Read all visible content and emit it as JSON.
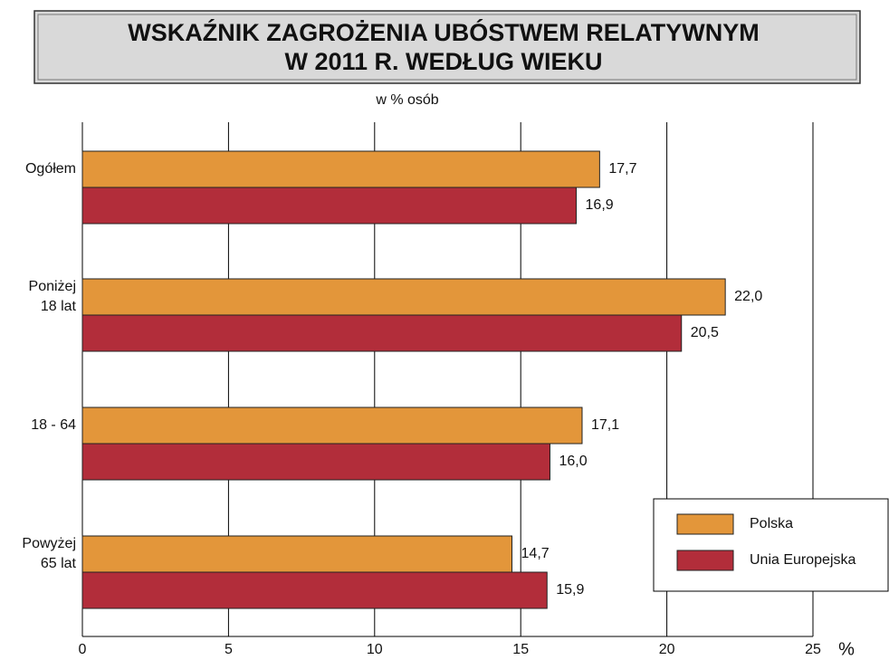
{
  "chart_data": {
    "type": "bar",
    "orientation": "horizontal",
    "title": [
      "WSKAŹNIK ZAGROŻENIA UBÓSTWEM RELATYWNYM",
      "W 2011 R. WEDŁUG WIEKU"
    ],
    "subtitle": "w % osób",
    "xlabel": "%",
    "categories": [
      "Ogółem",
      "Poniżej\n18 lat",
      "18 - 64",
      "Powyżej\n65 lat"
    ],
    "series": [
      {
        "name": "Polska",
        "color": "#e3963a",
        "values": [
          17.7,
          22.0,
          17.1,
          14.7
        ],
        "value_labels": [
          "17,7",
          "22,0",
          "17,1",
          "14,7"
        ]
      },
      {
        "name": "Unia Europejska",
        "color": "#b22d3a",
        "values": [
          16.9,
          20.5,
          16.0,
          15.9
        ],
        "value_labels": [
          "16,9",
          "20,5",
          "16,0",
          "15,9"
        ]
      }
    ],
    "xlim": [
      0,
      25
    ],
    "xticks": [
      0,
      5,
      10,
      15,
      20,
      25
    ],
    "grid": true,
    "legend": "lower right"
  }
}
